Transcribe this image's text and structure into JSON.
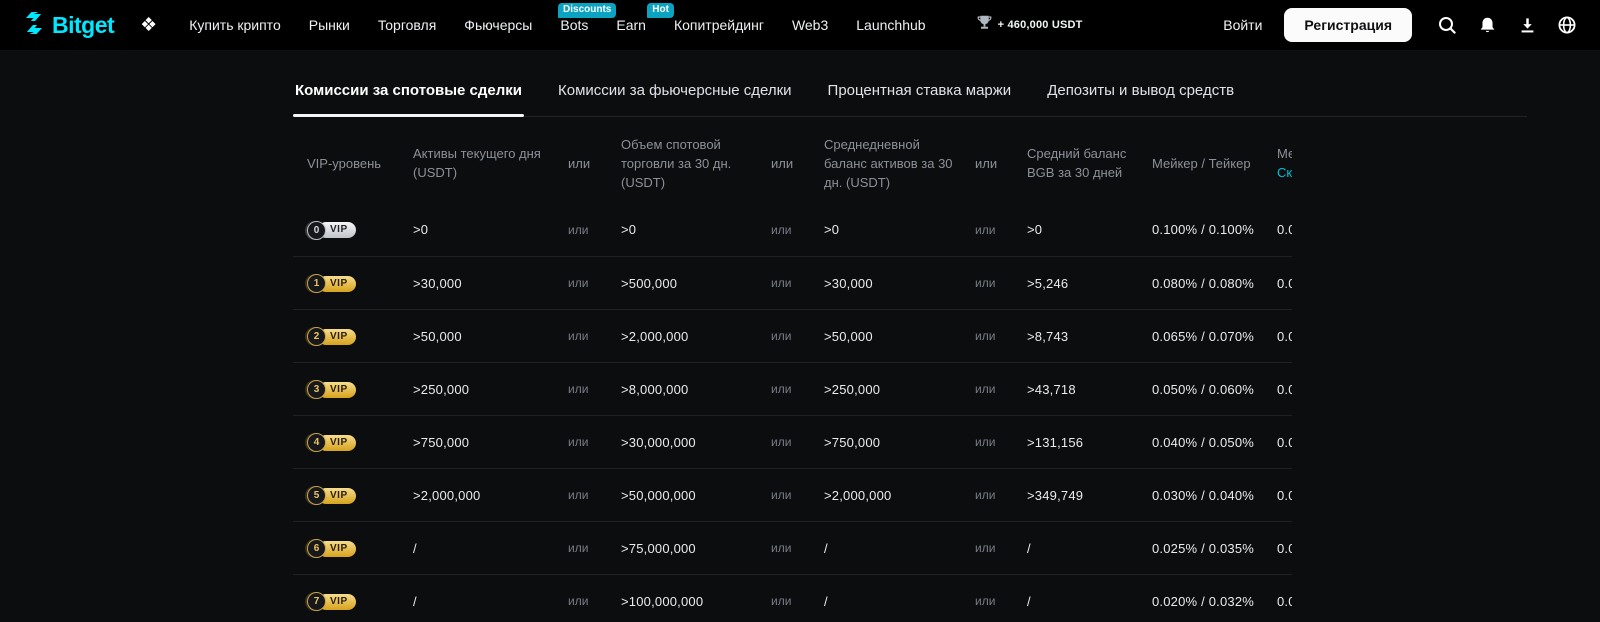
{
  "brand": {
    "name": "Bitget"
  },
  "nav": {
    "items": [
      {
        "name": "buy-crypto",
        "label": "Купить крипто"
      },
      {
        "name": "markets",
        "label": "Рынки"
      },
      {
        "name": "trade",
        "label": "Торговля"
      },
      {
        "name": "futures",
        "label": "Фьючерсы"
      },
      {
        "name": "bots",
        "label": "Bots",
        "badge": "Discounts"
      },
      {
        "name": "earn",
        "label": "Earn",
        "badge": "Hot"
      },
      {
        "name": "copy-trading",
        "label": "Копитрейдинг"
      },
      {
        "name": "web3",
        "label": "Web3"
      },
      {
        "name": "launchhub",
        "label": "Launchhub"
      }
    ],
    "reward_text": "+ 460,000 USDT",
    "login_label": "Войти",
    "register_label": "Регистрация"
  },
  "tabs": [
    {
      "name": "spot-fees",
      "label": "Комиссии за спотовые сделки",
      "active": true
    },
    {
      "name": "futures-fees",
      "label": "Комиссии за фьючерсные сделки",
      "active": false
    },
    {
      "name": "margin-rate",
      "label": "Процентная ставка маржи",
      "active": false
    },
    {
      "name": "deposits-withdrawals",
      "label": "Депозиты и вывод средств",
      "active": false
    }
  ],
  "table": {
    "vip_label": "VIP",
    "headers": {
      "vip": "VIP-уровень",
      "assets": "Активы текущего дня (USDT)",
      "or": "или",
      "volume": "Объем спотовой торговли за 30 дн. (USDT)",
      "avg_balance": "Среднедневной баланс активов за 30 дн. (USDT)",
      "bgb": "Средний баланс BGB за 30 дней",
      "maker_taker": "Мейкер / Тейкер",
      "clipped_line1": "Ме",
      "clipped_line2": "Ск"
    },
    "rows": [
      {
        "level": "0",
        "assets": ">0",
        "volume": ">0",
        "avg": ">0",
        "bgb": ">0",
        "maker_taker": "0.100% / 0.100%",
        "clipped": "0.0"
      },
      {
        "level": "1",
        "assets": ">30,000",
        "volume": ">500,000",
        "avg": ">30,000",
        "bgb": ">5,246",
        "maker_taker": "0.080% / 0.080%",
        "clipped": "0.0"
      },
      {
        "level": "2",
        "assets": ">50,000",
        "volume": ">2,000,000",
        "avg": ">50,000",
        "bgb": ">8,743",
        "maker_taker": "0.065% / 0.070%",
        "clipped": "0.0"
      },
      {
        "level": "3",
        "assets": ">250,000",
        "volume": ">8,000,000",
        "avg": ">250,000",
        "bgb": ">43,718",
        "maker_taker": "0.050% / 0.060%",
        "clipped": "0.0"
      },
      {
        "level": "4",
        "assets": ">750,000",
        "volume": ">30,000,000",
        "avg": ">750,000",
        "bgb": ">131,156",
        "maker_taker": "0.040% / 0.050%",
        "clipped": "0.0"
      },
      {
        "level": "5",
        "assets": ">2,000,000",
        "volume": ">50,000,000",
        "avg": ">2,000,000",
        "bgb": ">349,749",
        "maker_taker": "0.030% / 0.040%",
        "clipped": "0.0"
      },
      {
        "level": "6",
        "assets": "/",
        "volume": ">75,000,000",
        "avg": "/",
        "bgb": "/",
        "maker_taker": "0.025% / 0.035%",
        "clipped": "0.0"
      },
      {
        "level": "7",
        "assets": "/",
        "volume": ">100,000,000",
        "avg": "/",
        "bgb": "/",
        "maker_taker": "0.020% / 0.032%",
        "clipped": "0.0"
      }
    ]
  },
  "colors": {
    "brand_cyan": "#00e8ff",
    "accent_teal": "#00c2d4",
    "badge_teal": "#0aa3c2",
    "gold": "#d6a21b",
    "page_bg": "#0c0d0f",
    "nav_bg": "#000000"
  }
}
